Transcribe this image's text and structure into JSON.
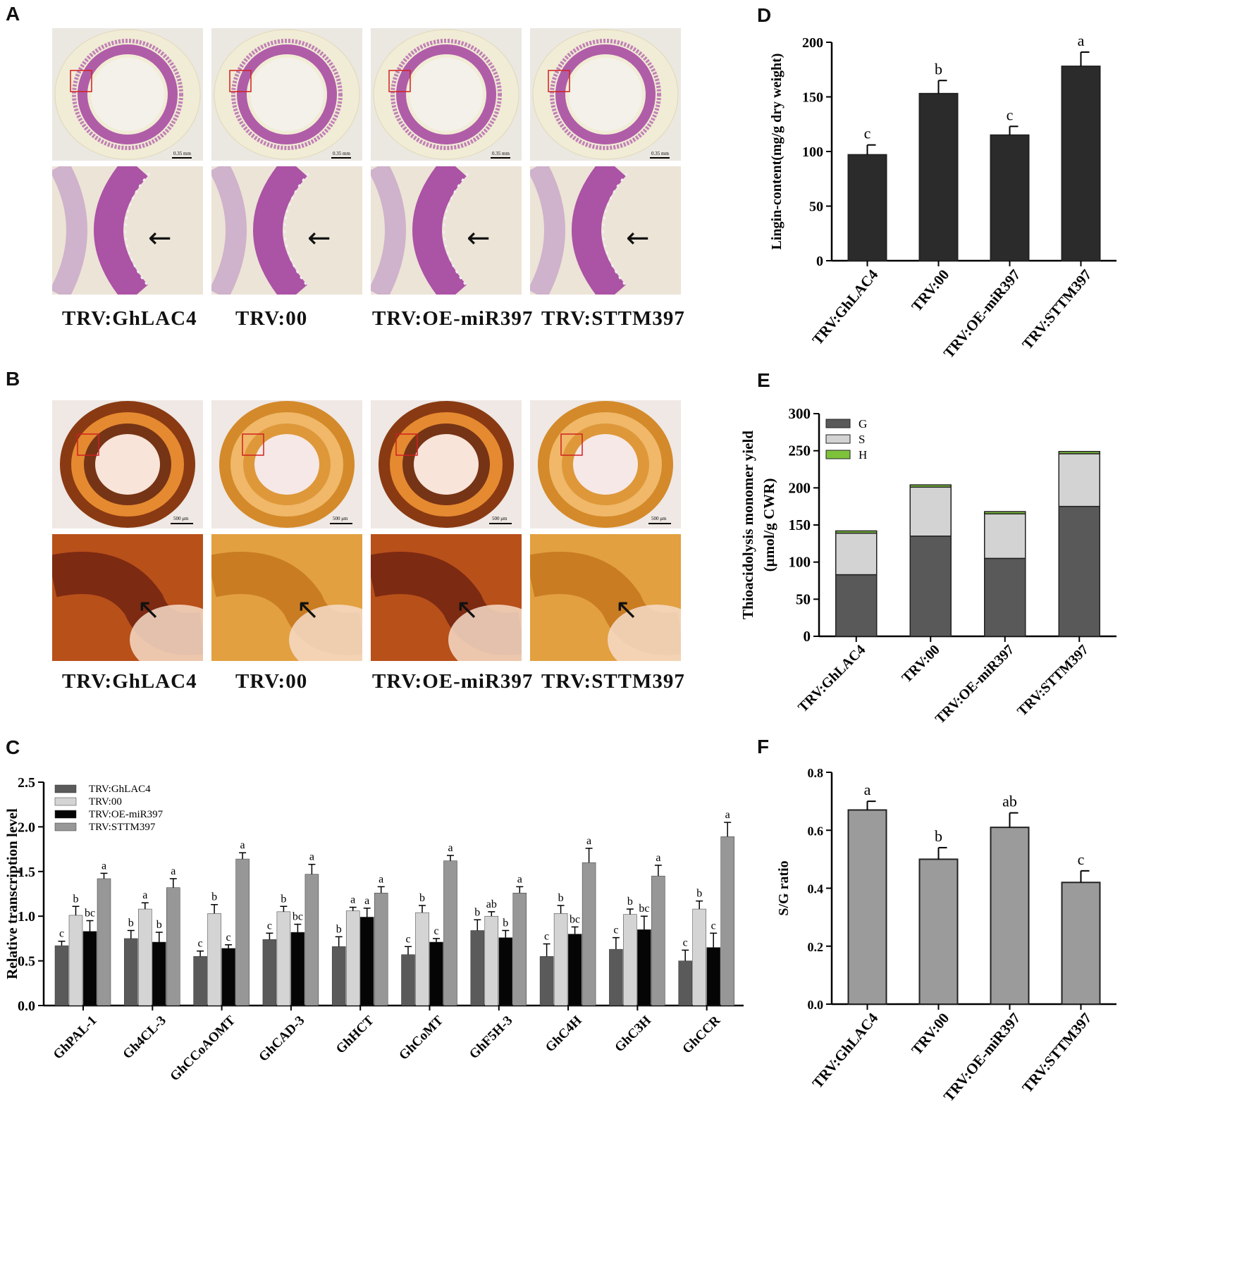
{
  "panels": {
    "A": {
      "letter": "A",
      "captions": [
        "TRV:GhLAC4",
        "TRV:00",
        "TRV:OE-miR397",
        "TRV:STTM397"
      ],
      "scale": "0.35 mm"
    },
    "B": {
      "letter": "B",
      "captions": [
        "TRV:GhLAC4",
        "TRV:00",
        "TRV:OE-miR397",
        "TRV:STTM397"
      ],
      "scale": "500 μm"
    },
    "C": {
      "letter": "C"
    },
    "D": {
      "letter": "D"
    },
    "E": {
      "letter": "E"
    },
    "F": {
      "letter": "F"
    }
  },
  "colors": {
    "phloroglucinol": "#a03a9c",
    "maule": "#c86a14",
    "dark": "#2b2b2b",
    "c_gray": "#5a5a5a",
    "c_light": "#d4d4d4",
    "c_black": "#050505",
    "c_mid": "#979797",
    "e_G": "#595959",
    "e_S": "#d3d3d3",
    "e_H": "#7ec23c",
    "f_bar": "#9b9b9b"
  },
  "chart_data": [
    {
      "id": "C",
      "type": "bar",
      "ylabel": "Relative transcription level",
      "ylim": [
        0,
        2.5
      ],
      "yticks": [
        "0.0",
        "0.5",
        "1.0",
        "1.5",
        "2.0",
        "2.5"
      ],
      "categories": [
        "GhPAL-1",
        "Gh4CL-3",
        "GhCCoAOMT",
        "GhCAD-3",
        "GhHCT",
        "GhCoMT",
        "GhF5H-3",
        "GhC4H",
        "GhC3H",
        "GhCCR"
      ],
      "series": [
        {
          "name": "TRV:GhLAC4",
          "values": [
            0.67,
            0.75,
            0.55,
            0.74,
            0.66,
            0.57,
            0.84,
            0.55,
            0.63,
            0.5
          ],
          "errors": [
            0.05,
            0.09,
            0.06,
            0.07,
            0.11,
            0.09,
            0.12,
            0.14,
            0.13,
            0.12
          ],
          "letters": [
            "c",
            "b",
            "c",
            "c",
            "b",
            "c",
            "b",
            "c",
            "c",
            "c"
          ]
        },
        {
          "name": "TRV:00",
          "values": [
            1.01,
            1.08,
            1.03,
            1.05,
            1.06,
            1.04,
            1.0,
            1.03,
            1.02,
            1.08
          ],
          "errors": [
            0.1,
            0.07,
            0.1,
            0.06,
            0.04,
            0.08,
            0.05,
            0.09,
            0.06,
            0.09
          ],
          "letters": [
            "b",
            "a",
            "b",
            "b",
            "a",
            "b",
            "ab",
            "b",
            "b",
            "b"
          ]
        },
        {
          "name": "TRV:OE-miR397",
          "values": [
            0.83,
            0.71,
            0.64,
            0.82,
            0.99,
            0.71,
            0.76,
            0.8,
            0.85,
            0.65
          ],
          "errors": [
            0.12,
            0.11,
            0.04,
            0.09,
            0.1,
            0.04,
            0.08,
            0.08,
            0.15,
            0.16
          ],
          "letters": [
            "bc",
            "b",
            "c",
            "bc",
            "a",
            "c",
            "b",
            "bc",
            "bc",
            "c"
          ]
        },
        {
          "name": "TRV:STTM397",
          "values": [
            1.42,
            1.32,
            1.64,
            1.47,
            1.26,
            1.62,
            1.26,
            1.6,
            1.45,
            1.89
          ],
          "errors": [
            0.06,
            0.1,
            0.07,
            0.11,
            0.07,
            0.06,
            0.07,
            0.16,
            0.12,
            0.16
          ],
          "letters": [
            "a",
            "a",
            "a",
            "a",
            "a",
            "a",
            "a",
            "a",
            "a",
            "a"
          ]
        }
      ],
      "legend_position": "top-left"
    },
    {
      "id": "D",
      "type": "bar",
      "ylabel": "Lingin-content(mg/g dry weight)",
      "ylim": [
        0,
        200
      ],
      "yticks": [
        "0",
        "50",
        "100",
        "150",
        "200"
      ],
      "categories": [
        "TRV:GhLAC4",
        "TRV:00",
        "TRV:OE-miR397",
        "TRV:STTM397"
      ],
      "values": [
        97,
        153,
        115,
        178
      ],
      "errors": [
        9,
        12,
        8,
        13
      ],
      "letters": [
        "c",
        "b",
        "c",
        "a"
      ]
    },
    {
      "id": "E",
      "type": "bar",
      "stacked": true,
      "ylabel_lines": [
        "Thioacidolysis monomer yield",
        "(μmol/g CWR)"
      ],
      "ylim": [
        0,
        300
      ],
      "yticks": [
        "0",
        "50",
        "100",
        "150",
        "200",
        "250",
        "300"
      ],
      "categories": [
        "TRV:GhLAC4",
        "TRV:00",
        "TRV:OE-miR397",
        "TRV:STTM397"
      ],
      "series": [
        {
          "name": "G",
          "values": [
            83,
            135,
            105,
            175
          ]
        },
        {
          "name": "S",
          "values": [
            56,
            66,
            60,
            71
          ]
        },
        {
          "name": "H",
          "values": [
            3,
            3,
            3,
            3
          ]
        }
      ],
      "legend_position": "top-left"
    },
    {
      "id": "F",
      "type": "bar",
      "ylabel": "S/G ratio",
      "ylim": [
        0,
        0.8
      ],
      "yticks": [
        "0.0",
        "0.2",
        "0.4",
        "0.6",
        "0.8"
      ],
      "categories": [
        "TRV:GhLAC4",
        "TRV:00",
        "TRV:OE-miR397",
        "TRV:STTM397"
      ],
      "values": [
        0.67,
        0.5,
        0.61,
        0.42
      ],
      "errors": [
        0.03,
        0.04,
        0.05,
        0.04
      ],
      "letters": [
        "a",
        "b",
        "ab",
        "c"
      ]
    }
  ]
}
